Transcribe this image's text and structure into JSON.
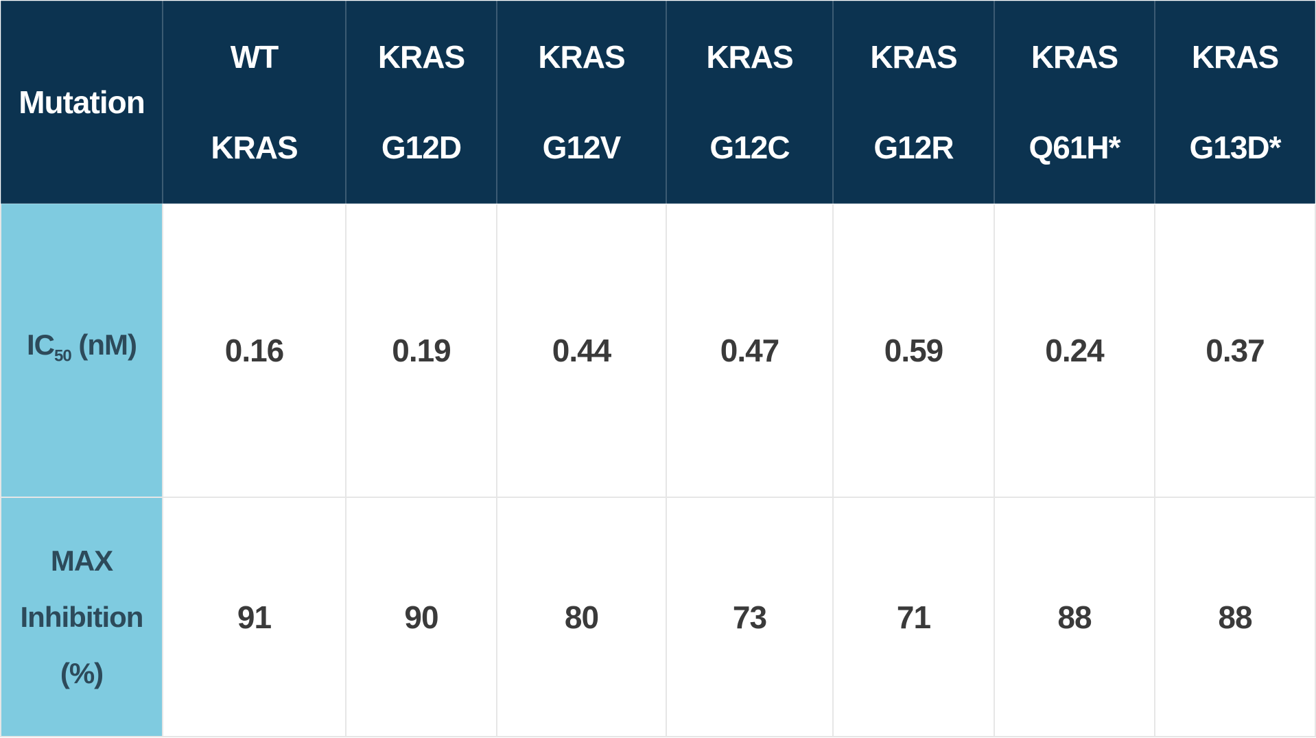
{
  "table": {
    "header": [
      [
        "Mutation"
      ],
      [
        "WT",
        "KRAS"
      ],
      [
        "KRAS",
        "G12D"
      ],
      [
        "KRAS",
        "G12V"
      ],
      [
        "KRAS",
        "G12C"
      ],
      [
        "KRAS",
        "G12R"
      ],
      [
        "KRAS",
        "Q61H*"
      ],
      [
        "KRAS",
        "G13D*"
      ]
    ],
    "rows": [
      {
        "label": {
          "text": "IC",
          "sub": "50",
          "after": "(nM)"
        },
        "cells": [
          "0.16",
          "0.19",
          "0.44",
          "0.47",
          "0.59",
          "0.24",
          "0.37"
        ]
      },
      {
        "label": [
          "MAX Inhibition",
          "(%)"
        ],
        "cells": [
          "91",
          "90",
          "80",
          "73",
          "71",
          "88",
          "88"
        ]
      }
    ]
  }
}
